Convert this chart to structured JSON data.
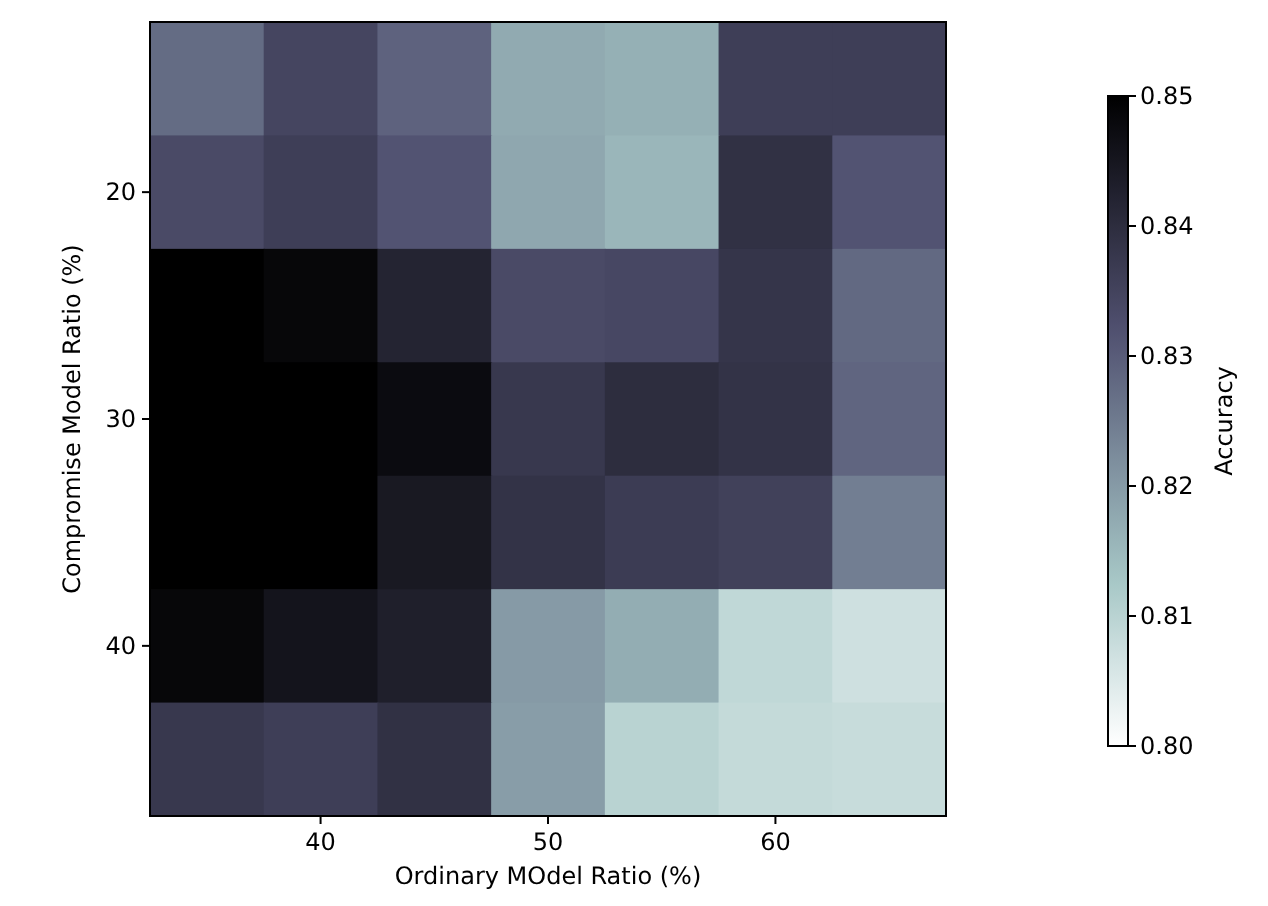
{
  "chart_data": {
    "type": "heatmap",
    "xlabel": "Ordinary MOdel Ratio (%)",
    "ylabel": "Compromise Model Ratio (%)",
    "clabel": "Accuracy",
    "categories": [
      null,
      "40",
      null,
      "50",
      null,
      "60",
      null
    ],
    "y_categories": [
      null,
      "20",
      null,
      "30",
      null,
      "40",
      null
    ],
    "cells": [
      [
        0.8275,
        0.8345,
        0.829,
        0.8175,
        0.8165,
        0.836,
        0.836
      ],
      [
        0.8335,
        0.836,
        0.8315,
        0.818,
        0.8155,
        0.839,
        0.8315
      ],
      [
        0.85,
        0.8485,
        0.842,
        0.8335,
        0.834,
        0.838,
        0.828
      ],
      [
        0.85,
        0.85,
        0.8475,
        0.8375,
        0.84,
        0.8385,
        0.8285
      ],
      [
        0.85,
        0.85,
        0.8445,
        0.8385,
        0.8365,
        0.8355,
        0.8245
      ],
      [
        0.8485,
        0.8455,
        0.843,
        0.82,
        0.817,
        0.809,
        0.807
      ],
      [
        0.8375,
        0.836,
        0.839,
        0.8195,
        0.81,
        0.8085,
        0.808
      ]
    ],
    "clim": [
      0.8,
      0.85
    ],
    "cticks": [
      {
        "value": 0.8,
        "label": "0.80"
      },
      {
        "value": 0.81,
        "label": "0.81"
      },
      {
        "value": 0.82,
        "label": "0.82"
      },
      {
        "value": 0.83,
        "label": "0.83"
      },
      {
        "value": 0.84,
        "label": "0.84"
      },
      {
        "value": 0.85,
        "label": "0.85"
      }
    ]
  }
}
